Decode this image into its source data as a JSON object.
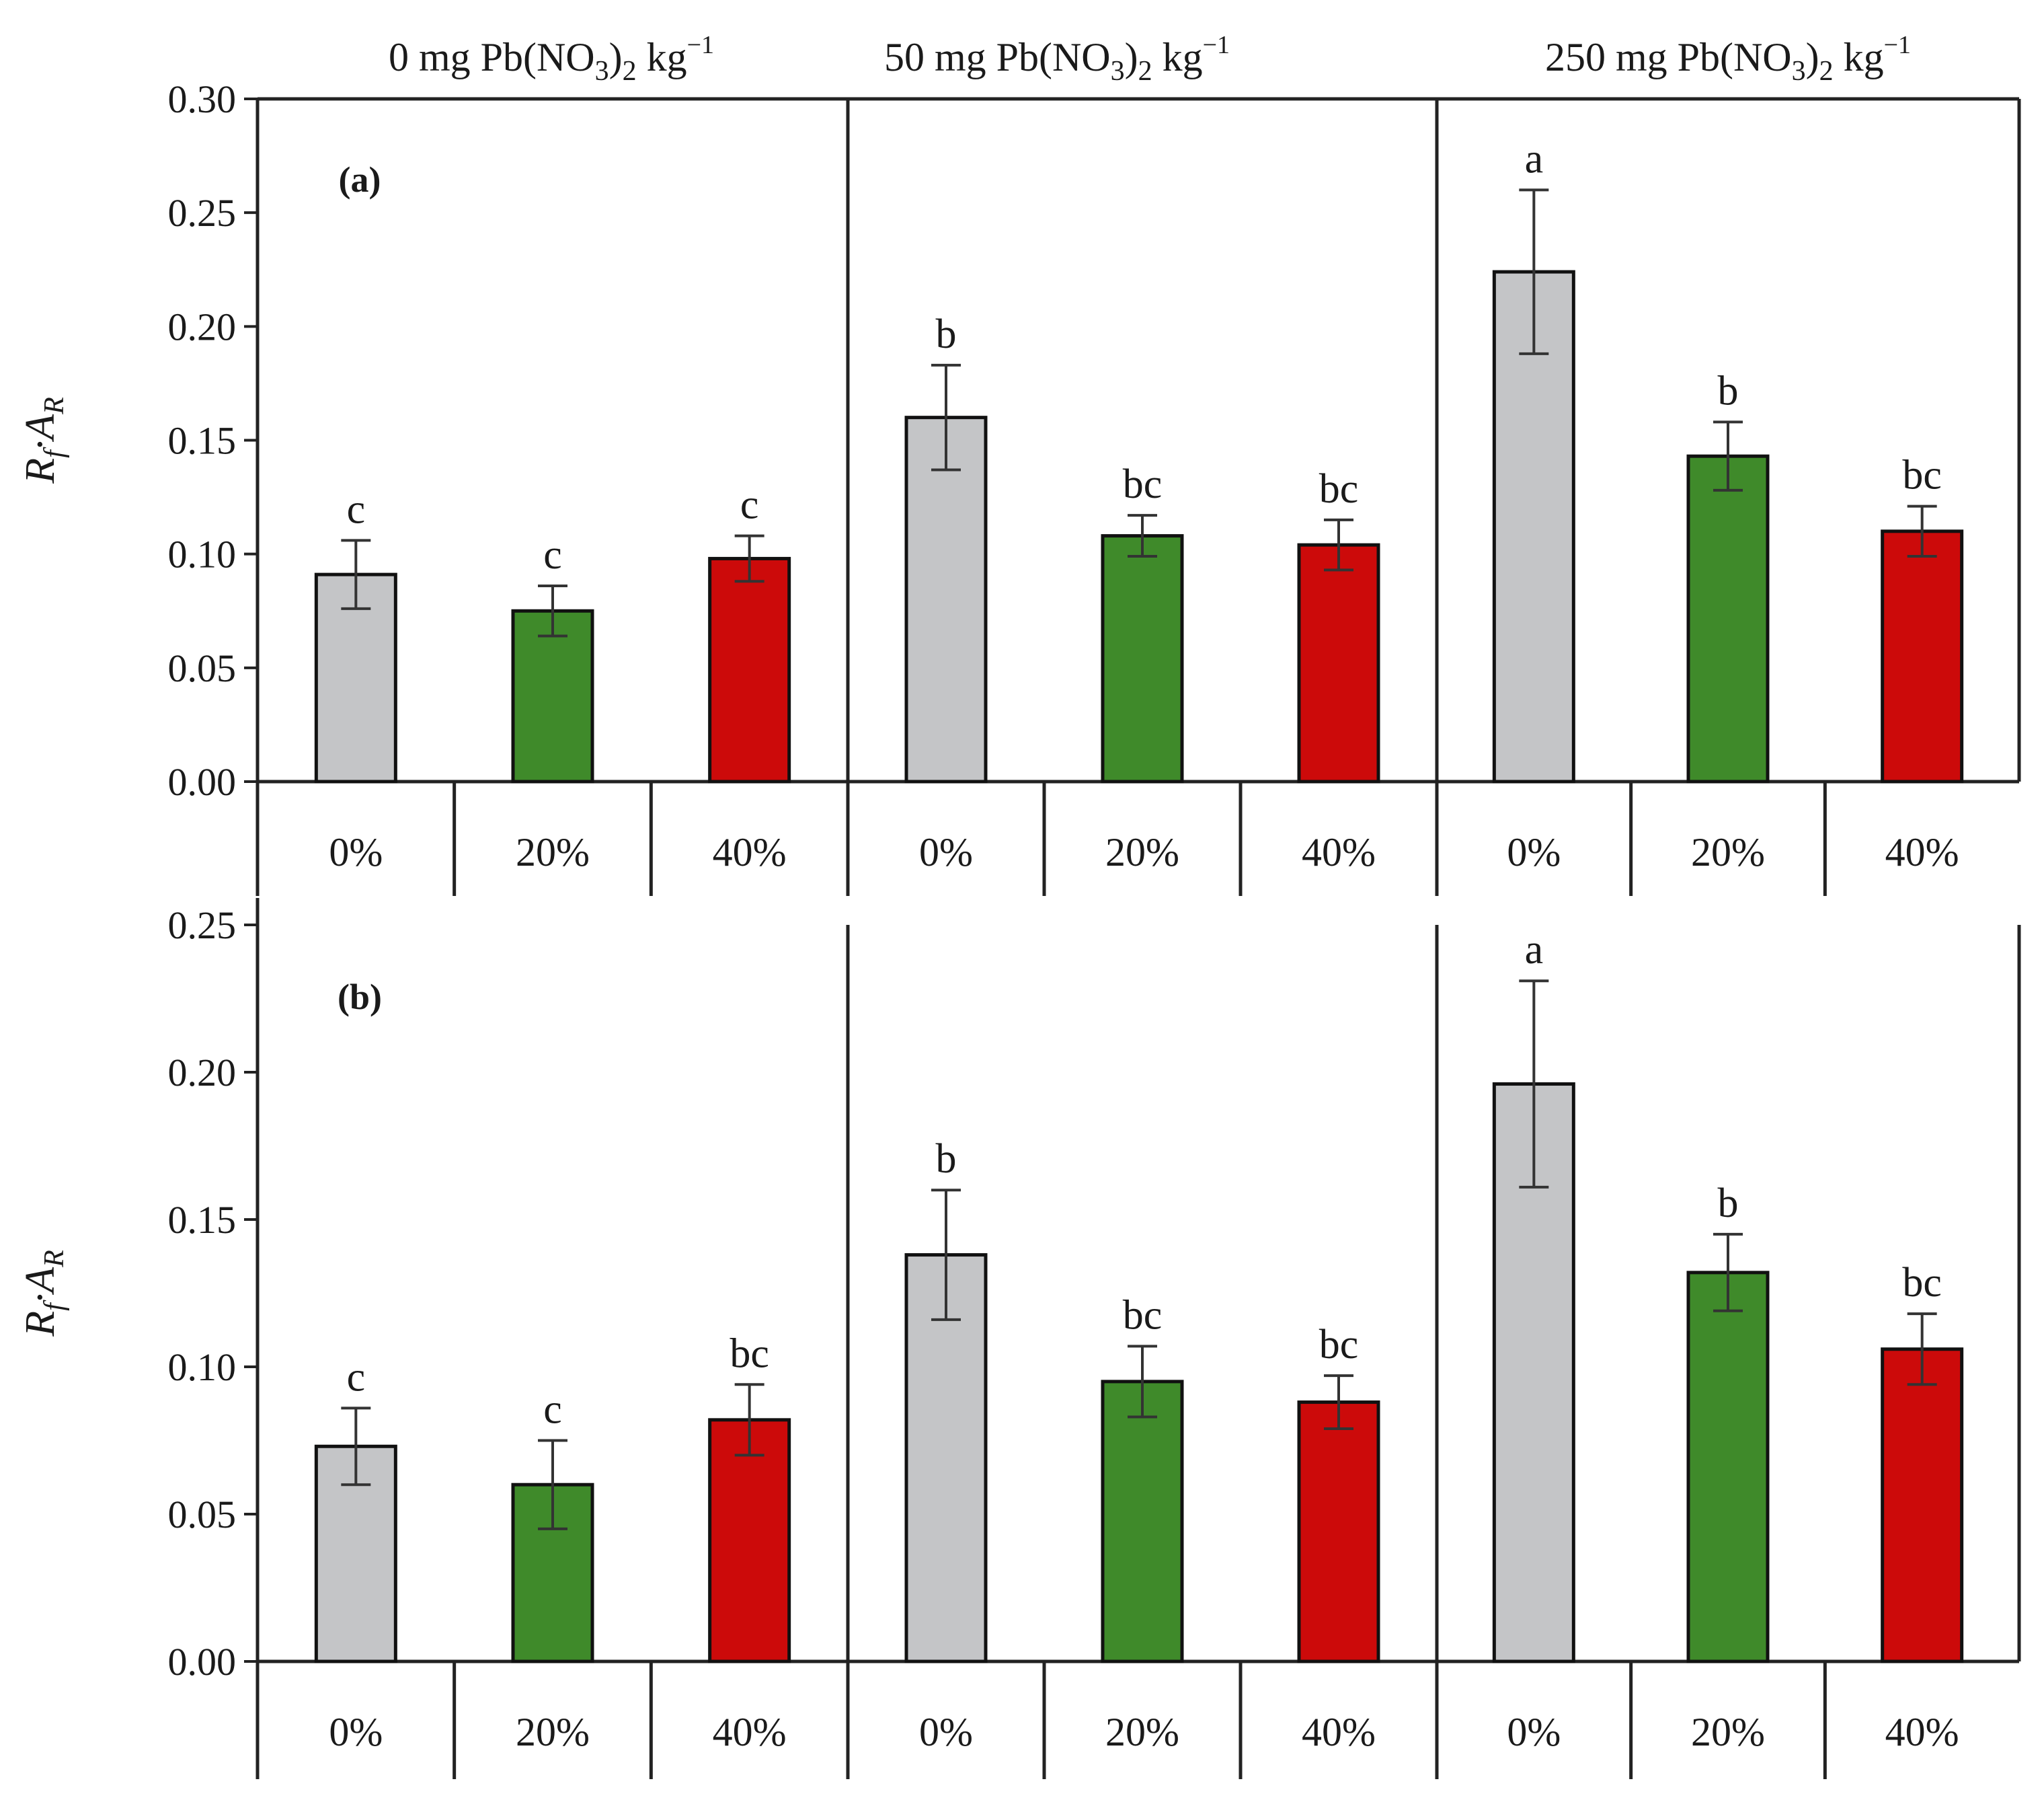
{
  "chart_data": {
    "type": "bar",
    "layout": "two stacked panels, three Pb(NO3)2 groups each",
    "group_titles": [
      {
        "lead": "0 mg Pb(NO",
        "sub1": "3",
        "mid": ")",
        "sub2": "2",
        "unit": " kg",
        "sup": "−1"
      },
      {
        "lead": "50 mg Pb(NO",
        "sub1": "3",
        "mid": ")",
        "sub2": "2",
        "unit": " kg",
        "sup": "−1"
      },
      {
        "lead": "250 mg Pb(NO",
        "sub1": "3",
        "mid": ")",
        "sub2": "2",
        "unit": " kg",
        "sup": "−1"
      }
    ],
    "categories": [
      "0%",
      "20%",
      "40%"
    ],
    "colors": {
      "0%": "#c4c5c7",
      "20%": "#3f8a2a",
      "40%": "#cc0a0a"
    },
    "panels": [
      {
        "label": "(a)",
        "ylabel_main": "R",
        "ylabel_sub1": "f",
        "ylabel_mid": "·A",
        "ylabel_sub2": "R",
        "ylim": [
          0,
          0.3
        ],
        "yticks": [
          "0.00",
          "0.05",
          "0.10",
          "0.15",
          "0.20",
          "0.25",
          "0.30"
        ],
        "groups": [
          {
            "values": [
              0.091,
              0.075,
              0.098
            ],
            "errors": [
              0.015,
              0.011,
              0.01
            ],
            "letters": [
              "c",
              "c",
              "c"
            ]
          },
          {
            "values": [
              0.16,
              0.108,
              0.104
            ],
            "errors": [
              0.023,
              0.009,
              0.011
            ],
            "letters": [
              "b",
              "bc",
              "bc"
            ]
          },
          {
            "values": [
              0.224,
              0.143,
              0.11
            ],
            "errors": [
              0.036,
              0.015,
              0.011
            ],
            "letters": [
              "a",
              "b",
              "bc"
            ]
          }
        ]
      },
      {
        "label": "(b)",
        "ylabel_main": "R",
        "ylabel_sub1": "f",
        "ylabel_mid": "·A",
        "ylabel_sub2": "R",
        "ylim": [
          0,
          0.25
        ],
        "yticks": [
          "0.00",
          "0.05",
          "0.10",
          "0.15",
          "0.20",
          "0.25"
        ],
        "groups": [
          {
            "values": [
              0.073,
              0.06,
              0.082
            ],
            "errors": [
              0.013,
              0.015,
              0.012
            ],
            "letters": [
              "c",
              "c",
              "bc"
            ]
          },
          {
            "values": [
              0.138,
              0.095,
              0.088
            ],
            "errors": [
              0.022,
              0.012,
              0.009
            ],
            "letters": [
              "b",
              "bc",
              "bc"
            ]
          },
          {
            "values": [
              0.196,
              0.132,
              0.106
            ],
            "errors": [
              0.035,
              0.013,
              0.012
            ],
            "letters": [
              "a",
              "b",
              "bc"
            ]
          }
        ]
      }
    ]
  }
}
